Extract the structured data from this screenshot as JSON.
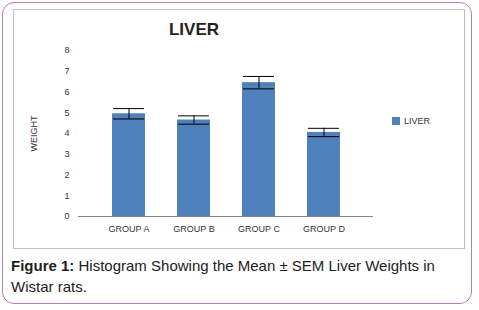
{
  "chart_data": {
    "type": "bar",
    "title": "LIVER",
    "categories": [
      "GROUP A",
      "GROUP B",
      "GROUP C",
      "GROUP D"
    ],
    "series": [
      {
        "name": "LIVER",
        "color": "#4f81bd",
        "values": [
          4.95,
          4.65,
          6.45,
          4.05
        ],
        "errors": [
          0.25,
          0.2,
          0.3,
          0.2
        ]
      }
    ],
    "y_label": "WEIGHT",
    "ylim": [
      0,
      8
    ],
    "yticks": [
      0,
      1,
      2,
      3,
      4,
      5,
      6,
      7,
      8
    ],
    "grid": false,
    "legend": "right",
    "caption": "Figure 1: Histogram Showing the Mean ± SEM Liver Weights in Wistar rats."
  }
}
